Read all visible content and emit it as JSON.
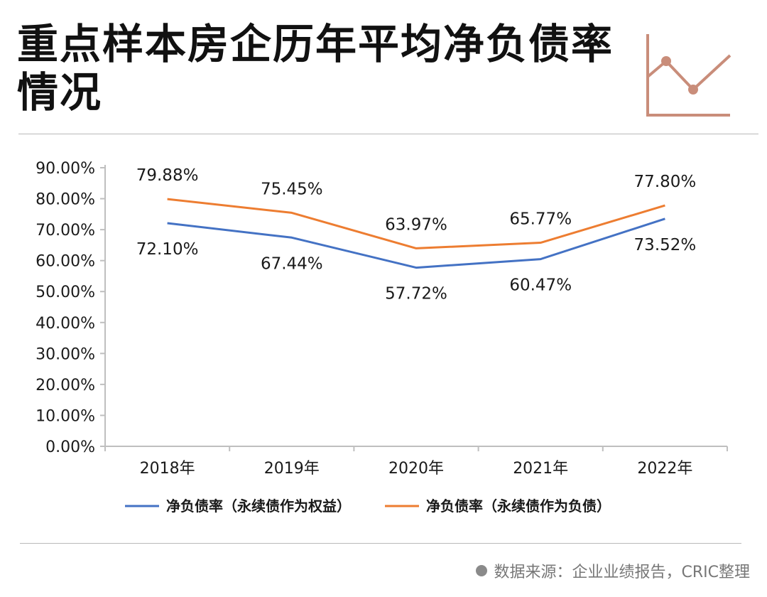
{
  "title": "重点样本房企历年平均净负债率情况",
  "source": "数据来源：企业业绩报告，CRIC整理",
  "deco_icon": "line-chart-icon",
  "colors": {
    "accent": "#c98d7a",
    "series_blue": "#4472c4",
    "series_orange": "#ed7d31"
  },
  "chart_data": {
    "type": "line",
    "categories": [
      "2018年",
      "2019年",
      "2020年",
      "2021年",
      "2022年"
    ],
    "ylim": [
      0,
      90
    ],
    "yticks": [
      0,
      10,
      20,
      30,
      40,
      50,
      60,
      70,
      80,
      90
    ],
    "ytick_labels": [
      "0.00%",
      "10.00%",
      "20.00%",
      "30.00%",
      "40.00%",
      "50.00%",
      "60.00%",
      "70.00%",
      "80.00%",
      "90.00%"
    ],
    "series": [
      {
        "name": "净负债率（永续债作为权益）",
        "values": [
          72.1,
          67.44,
          57.72,
          60.47,
          73.52
        ],
        "labels": [
          "72.10%",
          "67.44%",
          "57.72%",
          "60.47%",
          "73.52%"
        ],
        "color": "#4472c4"
      },
      {
        "name": "净负债率（永续债作为负债）",
        "values": [
          79.88,
          75.45,
          63.97,
          65.77,
          77.8
        ],
        "labels": [
          "79.88%",
          "75.45%",
          "63.97%",
          "65.77%",
          "77.80%"
        ],
        "color": "#ed7d31"
      }
    ],
    "legend": "bottom",
    "grid": false
  }
}
